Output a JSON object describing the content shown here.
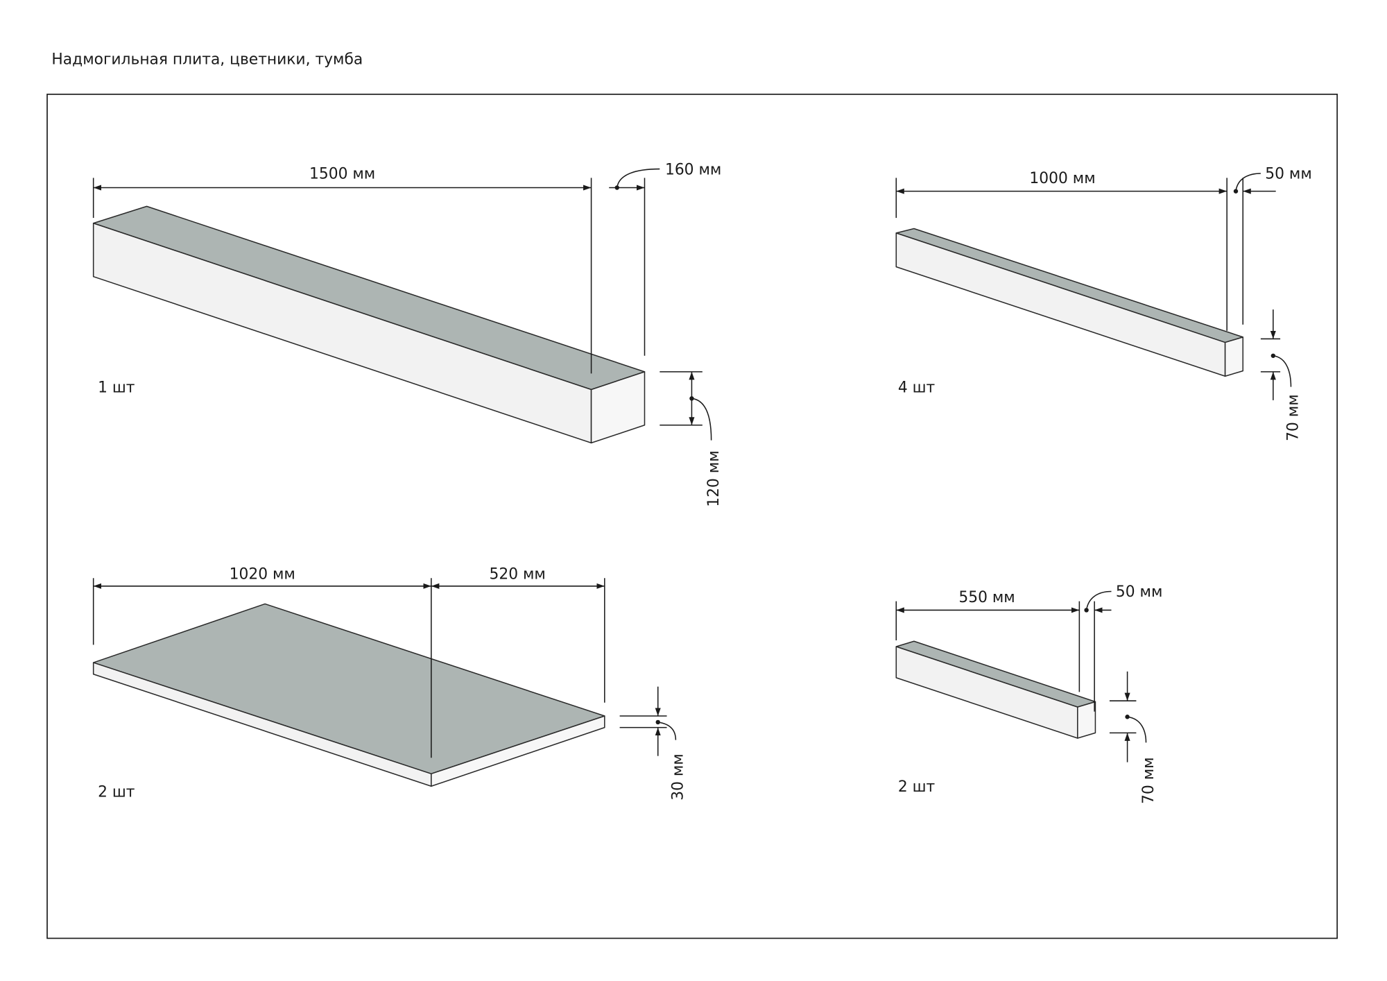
{
  "header": {
    "title": "Надмогильная плита, цветники, тумба"
  },
  "parts": [
    {
      "quantity": "1 шт",
      "dimensions": [
        "1500 мм",
        "160 мм",
        "120 мм"
      ]
    },
    {
      "quantity": "4 шт",
      "dimensions": [
        "1000 мм",
        "50 мм",
        "70 мм"
      ]
    },
    {
      "quantity": "2 шт",
      "dimensions": [
        "1020 мм",
        "520 мм",
        "30 мм"
      ]
    },
    {
      "quantity": "2 шт",
      "dimensions": [
        "550 мм",
        "50 мм",
        "70 мм"
      ]
    }
  ]
}
